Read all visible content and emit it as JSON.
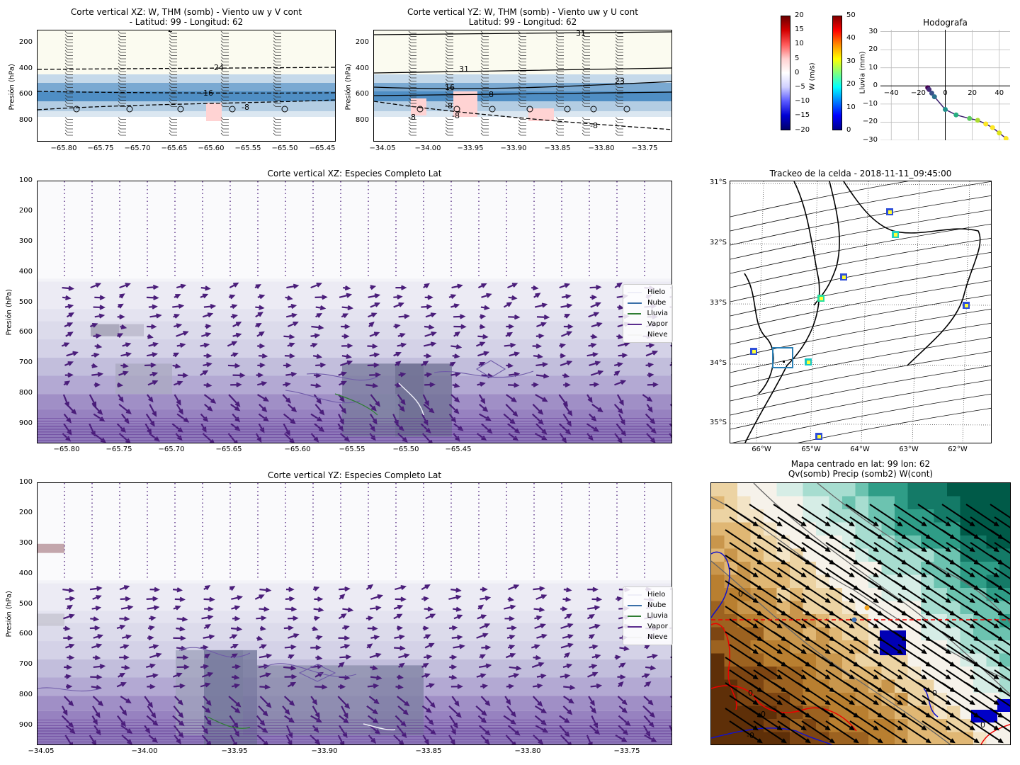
{
  "top_xz": {
    "title_line1": "Corte vertical XZ: W, THM (somb) - Viento uw y V cont",
    "title_line2": "- Latitud: 99 - Longitud: 62",
    "ylabel": "Presión (hPa)",
    "yticks": [
      "200",
      "400",
      "600",
      "800"
    ],
    "xticks": [
      "−65.80",
      "−65.75",
      "−65.70",
      "−65.65",
      "−65.60",
      "−65.55",
      "−65.50",
      "−65.45"
    ],
    "contour_labels": [
      "-2",
      "-24",
      "-16",
      "-8"
    ]
  },
  "top_yz": {
    "title_line1": "Corte vertical YZ: W, THM (somb) - Viento uw y U cont",
    "title_line2": "Latitud: 99 - Longitud: 62",
    "ylabel": "Presión (hPa)",
    "yticks": [
      "200",
      "400",
      "600",
      "800"
    ],
    "xticks": [
      "−34.05",
      "−34.00",
      "−33.95",
      "−33.90",
      "−33.85",
      "−33.80",
      "−33.75"
    ],
    "contour_labels": [
      "31",
      "31",
      "23",
      "16",
      "8",
      "-8",
      "-8",
      "-8",
      "-8"
    ]
  },
  "colorbar_w": {
    "label": "W (m/s)",
    "ticks": [
      "20",
      "15",
      "10",
      "5",
      "0",
      "−5",
      "−10",
      "−15",
      "−20"
    ]
  },
  "colorbar_rain": {
    "label": "Lluvia (mm)",
    "ticks": [
      "50",
      "40",
      "30",
      "20",
      "10",
      "0"
    ]
  },
  "hodograph": {
    "title": "Hodografa",
    "xticks": [
      "−40",
      "−20",
      "0",
      "20",
      "40"
    ],
    "yticks": [
      "30",
      "20",
      "10",
      "0",
      "−10",
      "−20",
      "−30"
    ]
  },
  "mid_xz": {
    "title": "Corte vertical XZ: Especies Completo Lat",
    "ylabel": "Presión (hPa)",
    "yticks": [
      "100",
      "200",
      "300",
      "400",
      "500",
      "600",
      "700",
      "800",
      "900"
    ],
    "xticks": [
      "−65.80",
      "−65.75",
      "−65.70",
      "−65.65",
      "−65.60",
      "−65.55",
      "−65.50",
      "−65.45"
    ]
  },
  "bot_yz": {
    "title": "Corte vertical YZ: Especies Completo Lat",
    "ylabel": "Presión (hPa)",
    "yticks": [
      "100",
      "200",
      "300",
      "400",
      "500",
      "600",
      "700",
      "800",
      "900"
    ],
    "xticks": [
      "−34.05",
      "−34.00",
      "−33.95",
      "−33.90",
      "−33.85",
      "−33.80",
      "−33.75"
    ]
  },
  "legend": {
    "items": [
      {
        "label": "Hielo",
        "color": "#eeeef8"
      },
      {
        "label": "Nube",
        "color": "#3a6fa8"
      },
      {
        "label": "Lluvia",
        "color": "#2e7d32"
      },
      {
        "label": "Vapor",
        "color": "#5b2d8e"
      },
      {
        "label": "Nieve",
        "color": "#f4f4f4"
      }
    ]
  },
  "track_map": {
    "title": "Trackeo de la celda - 2018-11-11_09:45:00",
    "lat_labels": [
      "31°S",
      "32°S",
      "33°S",
      "34°S",
      "35°S"
    ],
    "lon_labels": [
      "66°W",
      "65°W",
      "64°W",
      "63°W",
      "62°W"
    ]
  },
  "center_map": {
    "title_line1": "Mapa centrado en lat: 99 lon: 62",
    "title_line2": "Qv(somb) Precip (somb2) W(cont)",
    "contour_labels": [
      "0",
      "0",
      "0",
      "-0",
      "0",
      "0"
    ]
  },
  "colors": {
    "axis": "#000000",
    "vapor_arrow": "#4a1d7a",
    "shade_blue": "#4f8ec4",
    "shade_cream": "#fbfbf0",
    "brown": "#b9833a",
    "teal": "#1b7f6e"
  },
  "chart_data": [
    {
      "type": "heatmap",
      "title": "Corte vertical XZ: W, THM (somb) - Viento uw y V cont - Latitud: 99 - Longitud: 62",
      "xlabel": "",
      "ylabel": "Presión (hPa)",
      "xlim": [
        -65.82,
        -65.43
      ],
      "ylim": [
        960,
        100
      ]
    },
    {
      "type": "heatmap",
      "title": "Corte vertical YZ: W, THM (somb) - Viento uw y U cont Latitud: 99 - Longitud: 62",
      "xlabel": "",
      "ylabel": "Presión (hPa)",
      "xlim": [
        -34.06,
        -33.72
      ],
      "ylim": [
        960,
        100
      ]
    },
    {
      "type": "scatter",
      "title": "Hodografa",
      "xlim": [
        -48,
        48
      ],
      "ylim": [
        -30,
        31
      ],
      "x": [
        -13,
        -12,
        -10,
        -8,
        0,
        8,
        18,
        24,
        30,
        35,
        40,
        45
      ],
      "y": [
        -1,
        -2,
        -4,
        -6,
        -13,
        -16,
        -18,
        -19,
        -21,
        -23,
        -26,
        -29
      ]
    },
    {
      "type": "heatmap",
      "title": "Corte vertical XZ: Especies Completo Lat",
      "xlabel": "",
      "ylabel": "Presión (hPa)",
      "xlim": [
        -65.82,
        -65.42
      ],
      "ylim": [
        965,
        100
      ],
      "series": [
        {
          "name": "Hielo"
        },
        {
          "name": "Nube"
        },
        {
          "name": "Lluvia"
        },
        {
          "name": "Vapor"
        },
        {
          "name": "Nieve"
        }
      ]
    },
    {
      "type": "heatmap",
      "title": "Corte vertical YZ: Especies Completo Lat",
      "xlabel": "",
      "ylabel": "Presión (hPa)",
      "xlim": [
        -34.055,
        -33.72
      ],
      "ylim": [
        965,
        100
      ],
      "series": [
        {
          "name": "Hielo"
        },
        {
          "name": "Nube"
        },
        {
          "name": "Lluvia"
        },
        {
          "name": "Vapor"
        },
        {
          "name": "Nieve"
        }
      ]
    }
  ]
}
